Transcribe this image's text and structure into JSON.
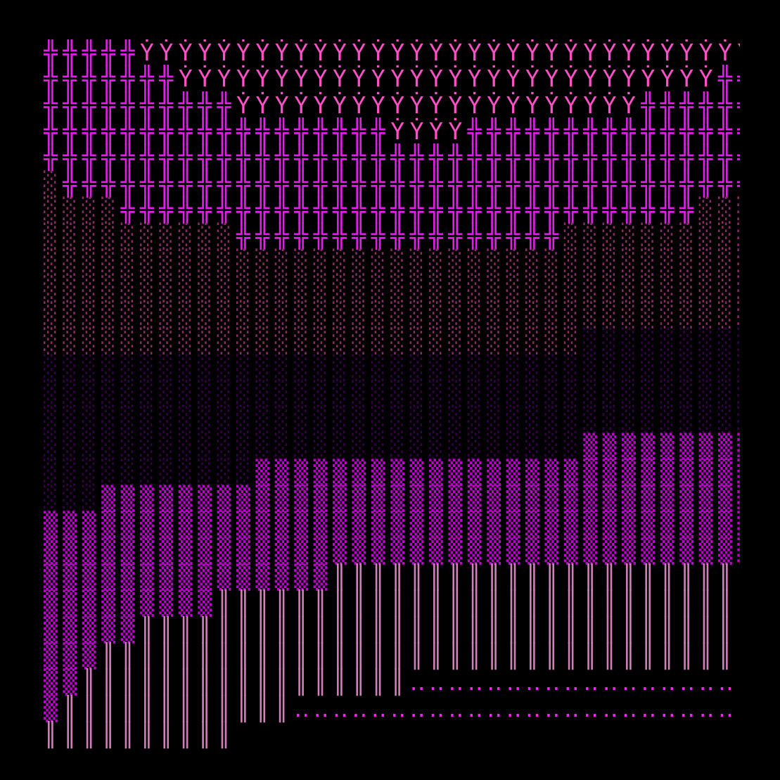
{
  "glyphs": {
    "C": {
      "char": "╬",
      "name": "double-cross-glyph",
      "color": "#e020e8"
    },
    "Y": {
      "char": "Ẏ",
      "name": "y-dot-glyph",
      "color": "#ff50c8"
    },
    "s": {
      "char": "░",
      "name": "dim-pink-shade-glyph",
      "color": "#8a2c66"
    },
    "d": {
      "char": "░",
      "name": "dark-purple-shade-glyph",
      "color": "#38004a"
    },
    "M": {
      "char": "▒",
      "name": "magenta-block-glyph",
      "color": "#c000d0"
    },
    "B": {
      "char": "║",
      "name": "double-bar-glyph",
      "color": "#d080b8"
    },
    "o": {
      "char": "‥",
      "name": "two-dot-glyph",
      "color": "#ff20ff"
    },
    " ": {
      "char": " ",
      "name": "empty-cell",
      "color": "#000000"
    }
  },
  "rows": [
    "CCCCCYYYYYYYYYYYYYYYYYYYYYYYYYYYYYYYY",
    "CCCCCCCYYYYYYYYYYYYYYYYYYYYYYYYYYYYCC",
    "CCCCCCCCCCYYYYYYYYYYYYYYYYYYYYYCCCCCC",
    "CCCCCCCCCCCCCCCCCCYYYYCCCCCCCCCCCCCCC",
    "CCCCCCCCCCCCCCCCCCCCCCCCCCCCCCCCCCCCC",
    "sCCCCCCCCCCCCCCCCCCCCCCCCCCCCCCCCCCCC",
    "ssssCCCCCCCCCCCCCCCCCCCCCCCCCCCCCCsss",
    "ssssssssssCCCCCCCCCCCCCCCCCssssssssss",
    "sssssssssssssssssssssssssssssssssssss",
    "sssssssssssssssssssssssssssssssssssss",
    "sssssssssssssssssssssssssssssssssssss",
    "ssssssssssssssssssssssssssssddddddddd",
    "ddddddddddddddddddddddddddddddddddddd",
    "ddddddddddddddddddddddddddddddddddddd",
    "ddddddddddddddddddddddddddddddddddddd",
    "ddddddddddddddddddddddddddddMMMMMMMMM",
    "dddddddddddMMMMMMMMMMMMMMMMMMMMMMMMMM",
    "dddMMMMMMMMMMMMMMMMMMMMMMMMMMMMMMMMMM",
    "MMMMMMMMMMMMMMMMMMMMMMMMMMMMMMMMMMMMM",
    "MMMMMMMMMMMMMMMMMMMMMMMMMMMMMMMMMMMMM",
    "MMMMMMMMMMMMMMMBBBBBBBBBBBBBBBBBBBBBB",
    "MMMMMMMMMBBBBBBBBBBBBBBBBBBBBBBBBBBBB",
    "MMMMMBBBBBBBBBBBBBBBBBBBBBBBBBBBBBBBB",
    "MMMBBBBBBBBBBBBBBBBBBBBBBBBBBBBBBBBBB",
    "MMBBBBBBBBBBBBBBBBBooooooooooooooooooB",
    "MBBBBBBBBBBBBoooooooooooooooooooooooo",
    "BBBBBBBBBB                           "
  ]
}
